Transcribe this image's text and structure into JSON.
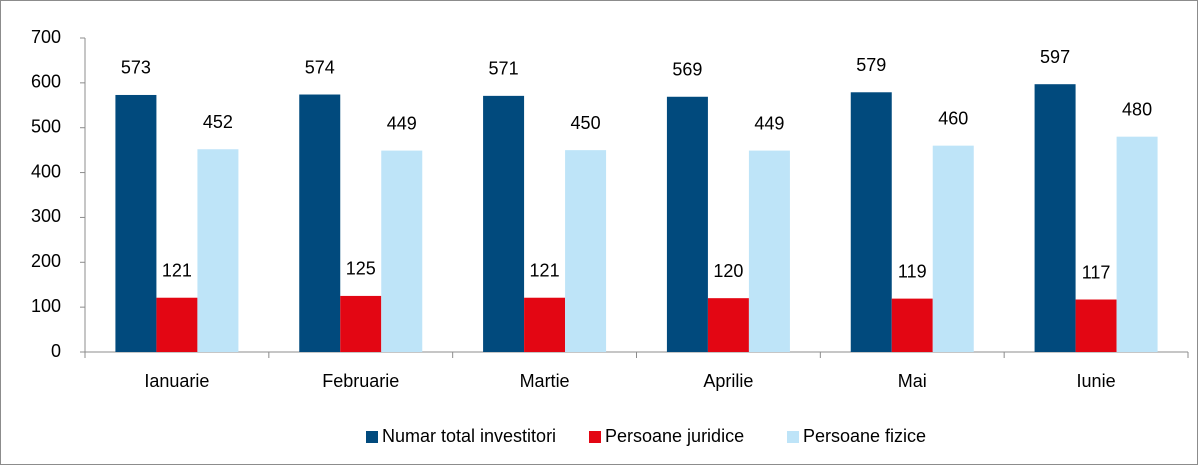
{
  "chart_data": {
    "type": "bar",
    "categories": [
      "Ianuarie",
      "Februarie",
      "Martie",
      "Aprilie",
      "Mai",
      "Iunie"
    ],
    "series": [
      {
        "name": "Numar total investitori",
        "color": "#014a7d",
        "values": [
          573,
          574,
          571,
          569,
          579,
          597
        ]
      },
      {
        "name": "Persoane juridice",
        "color": "#e30613",
        "values": [
          121,
          125,
          121,
          120,
          119,
          117
        ]
      },
      {
        "name": "Persoane fizice",
        "color": "#bee4f8",
        "values": [
          452,
          449,
          450,
          449,
          460,
          480
        ]
      }
    ],
    "ylim": [
      0,
      700
    ],
    "yticks": [
      0,
      100,
      200,
      300,
      400,
      500,
      600,
      700
    ],
    "grid": false,
    "legend": "bottom"
  }
}
